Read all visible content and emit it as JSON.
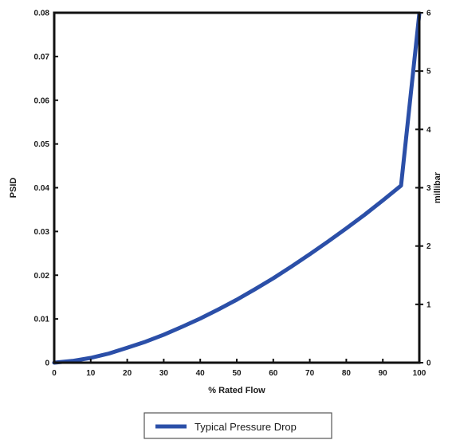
{
  "chart_data": {
    "type": "line",
    "title": "",
    "xlabel": "% Rated Flow",
    "ylabel": "PSID",
    "y2label": "millibar",
    "xlim": [
      0,
      100
    ],
    "ylim": [
      0,
      0.08
    ],
    "y2lim": [
      0,
      6
    ],
    "x_ticks": [
      0,
      10,
      20,
      30,
      40,
      50,
      60,
      70,
      80,
      90,
      100
    ],
    "x_tick_labels": [
      "0",
      "10",
      "20",
      "30",
      "40",
      "50",
      "60",
      "70",
      "80",
      "90",
      "100"
    ],
    "y_ticks": [
      0,
      0.01,
      0.02,
      0.03,
      0.04,
      0.05,
      0.06,
      0.07,
      0.08
    ],
    "y_tick_labels": [
      "0",
      "0.01",
      "0.02",
      "0.03",
      "0.04",
      "0.05",
      "0.06",
      "0.07",
      "0.08"
    ],
    "y2_ticks": [
      0,
      1,
      2,
      3,
      4,
      5,
      6
    ],
    "y2_tick_labels": [
      "0",
      "1",
      "2",
      "3",
      "4",
      "5",
      "6"
    ],
    "grid": false,
    "legend_position": "bottom",
    "series": [
      {
        "name": "Typical Pressure Drop",
        "color": "#2b4fa8",
        "x": [
          0,
          5,
          10,
          15,
          20,
          25,
          30,
          35,
          40,
          45,
          50,
          55,
          60,
          65,
          70,
          75,
          80,
          85,
          90,
          95,
          100
        ],
        "y": [
          0,
          0.0004,
          0.0011,
          0.0021,
          0.0034,
          0.0048,
          0.0064,
          0.0082,
          0.0101,
          0.0122,
          0.0144,
          0.0168,
          0.0193,
          0.022,
          0.0248,
          0.0277,
          0.0307,
          0.0338,
          0.0371,
          0.0405,
          0.0798
        ]
      }
    ]
  }
}
